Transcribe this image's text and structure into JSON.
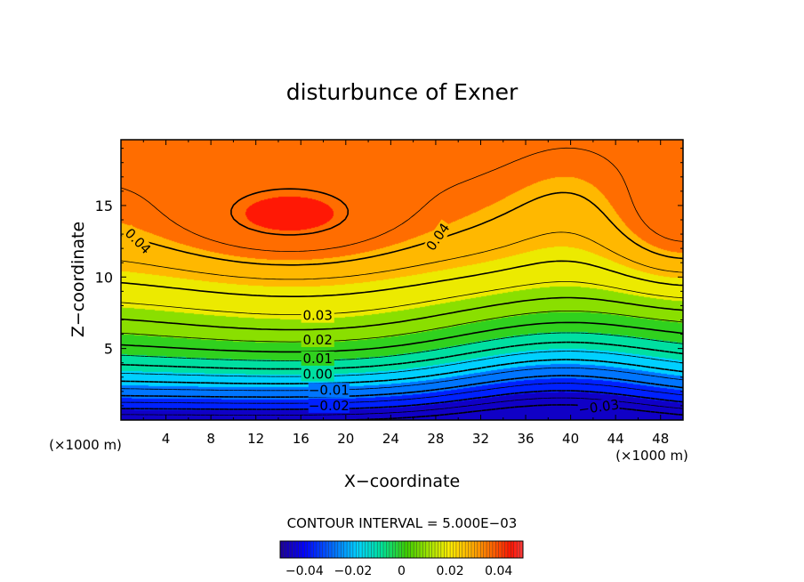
{
  "chart_data": {
    "type": "heatmap",
    "title": "disturbunce of Exner",
    "xlabel": "X−coordinate",
    "ylabel": "Z−coordinate",
    "x_unit": "(×1000 m)",
    "x_unit_right": "(×1000 m)",
    "xlim": [
      0,
      50
    ],
    "ylim": [
      0,
      19.6
    ],
    "xticks": [
      4,
      8,
      12,
      16,
      20,
      24,
      28,
      32,
      36,
      40,
      44,
      48
    ],
    "yticks": [
      5,
      10,
      15
    ],
    "contour_interval_text": "CONTOUR INTERVAL = 5.000E−03",
    "contour_interval": 0.005,
    "value_range": [
      -0.05,
      0.05
    ],
    "colorbar": {
      "ticks": [
        -0.04,
        -0.02,
        0,
        0.02,
        0.04
      ],
      "tick_labels": [
        "−0.04",
        "−0.02",
        "0",
        "0.02",
        "0.04"
      ]
    },
    "contour_labels": [
      {
        "text": "0.04",
        "x": 1.5,
        "z": 12.5,
        "angle": 45
      },
      {
        "text": "0.04",
        "x": 28.2,
        "z": 12.8,
        "angle": -55
      },
      {
        "text": "0.03",
        "x": 17.5,
        "z": 7.3,
        "angle": 0
      },
      {
        "text": "0.02",
        "x": 17.5,
        "z": 5.6,
        "angle": 0
      },
      {
        "text": "0.01",
        "x": 17.5,
        "z": 4.3,
        "angle": 0
      },
      {
        "text": "0.00",
        "x": 17.5,
        "z": 3.2,
        "angle": 0
      },
      {
        "text": "−0.01",
        "x": 18.5,
        "z": 2.1,
        "angle": 0
      },
      {
        "text": "−0.02",
        "x": 18.5,
        "z": 1.0,
        "angle": 0
      },
      {
        "text": "−0.03",
        "x": 42.5,
        "z": 0.9,
        "angle": -8
      }
    ]
  }
}
